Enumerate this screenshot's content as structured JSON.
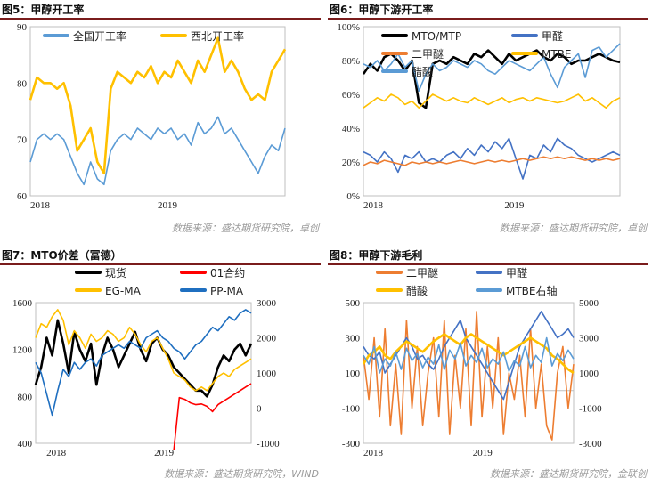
{
  "charts": [
    {
      "title": "图5：甲醇开工率",
      "source": "数据来源：盛达期货研究院，卓创",
      "chart_data": {
        "type": "line",
        "x_ticks": [
          "2018",
          "2019"
        ],
        "ylim": [
          60,
          90
        ],
        "y_ticks": [
          "60",
          "70",
          "80",
          "90"
        ],
        "legend": "top",
        "series": [
          {
            "name": "全国开工率",
            "color": "#5b9bd5",
            "values": [
              66,
              70,
              71,
              70,
              71,
              70,
              67,
              64,
              62,
              66,
              63,
              62,
              68,
              70,
              71,
              70,
              72,
              71,
              70,
              72,
              71,
              72,
              70,
              71,
              69,
              73,
              71,
              72,
              74,
              71,
              72,
              70,
              68,
              66,
              64,
              67,
              69,
              68,
              72
            ]
          },
          {
            "name": "西北开工率",
            "color": "#ffc000",
            "values": [
              77,
              81,
              80,
              80,
              79,
              80,
              76,
              68,
              70,
              72,
              66,
              64,
              79,
              82,
              81,
              80,
              82,
              81,
              83,
              80,
              82,
              81,
              84,
              82,
              80,
              84,
              82,
              85,
              88,
              82,
              84,
              82,
              79,
              77,
              78,
              77,
              82,
              84,
              86
            ]
          }
        ]
      }
    },
    {
      "title": "图6：甲醇下游开工率",
      "source": "数据来源：盛达期货研究院，卓创",
      "chart_data": {
        "type": "line",
        "x_ticks": [
          "2018",
          "2019"
        ],
        "ylim": [
          0,
          100
        ],
        "y_ticks": [
          "0%",
          "20%",
          "40%",
          "60%",
          "80%",
          "100%"
        ],
        "legend": "top",
        "series": [
          {
            "name": "MTO/MTP",
            "color": "#000000",
            "values": [
              72,
              78,
              74,
              82,
              84,
              80,
              74,
              80,
              55,
              52,
              78,
              80,
              78,
              82,
              80,
              78,
              84,
              82,
              86,
              82,
              78,
              84,
              80,
              82,
              84,
              86,
              82,
              80,
              84,
              82,
              78,
              80,
              80,
              82,
              84,
              82,
              80,
              79
            ]
          },
          {
            "name": "甲醛",
            "color": "#4472c4",
            "values": [
              26,
              24,
              20,
              26,
              22,
              14,
              24,
              22,
              26,
              20,
              22,
              20,
              24,
              26,
              22,
              28,
              24,
              30,
              26,
              32,
              28,
              34,
              22,
              10,
              24,
              22,
              30,
              26,
              34,
              30,
              28,
              24,
              22,
              20,
              22,
              24,
              26,
              24
            ]
          },
          {
            "name": "二甲醚",
            "color": "#ed7d31",
            "values": [
              18,
              20,
              19,
              21,
              20,
              19,
              18,
              20,
              19,
              20,
              19,
              20,
              19,
              20,
              21,
              20,
              19,
              20,
              21,
              20,
              21,
              20,
              21,
              22,
              21,
              22,
              23,
              22,
              23,
              22,
              23,
              22,
              21,
              22,
              21,
              22,
              21,
              22
            ]
          },
          {
            "name": "MTBE",
            "color": "#ffc000",
            "values": [
              52,
              55,
              58,
              56,
              60,
              58,
              54,
              56,
              52,
              56,
              60,
              58,
              56,
              58,
              56,
              55,
              58,
              56,
              54,
              56,
              58,
              55,
              57,
              58,
              56,
              58,
              57,
              56,
              55,
              56,
              58,
              60,
              56,
              58,
              55,
              52,
              56,
              58
            ]
          },
          {
            "name": "醋酸",
            "color": "#5b9bd5",
            "values": [
              78,
              76,
              80,
              74,
              78,
              84,
              76,
              80,
              62,
              72,
              78,
              74,
              76,
              80,
              78,
              76,
              80,
              78,
              74,
              72,
              76,
              80,
              78,
              76,
              74,
              78,
              82,
              72,
              64,
              76,
              80,
              84,
              70,
              86,
              88,
              82,
              86,
              90
            ]
          }
        ]
      }
    },
    {
      "title": "图7：MTO价差（冨德）",
      "source": "数据来源：盛达期货研究院，WIND",
      "chart_data": {
        "type": "line",
        "x_ticks": [
          "2018",
          "2019"
        ],
        "ylim": [
          400,
          1600
        ],
        "y_ticks": [
          "400",
          "800",
          "1200",
          "1600"
        ],
        "y2lim": [
          -1000,
          3000
        ],
        "y2_ticks": [
          "-1000",
          "0",
          "1000",
          "2000",
          "3000"
        ],
        "legend": "top",
        "series": [
          {
            "name": "现货",
            "color": "#000000",
            "axis": "left",
            "values": [
              900,
              1050,
              1300,
              1150,
              1450,
              1250,
              1000,
              1350,
              1200,
              1100,
              1250,
              900,
              1150,
              1300,
              1200,
              1050,
              1150,
              1250,
              1350,
              1200,
              1100,
              1250,
              1300,
              1200,
              1150,
              1050,
              1000,
              950,
              900,
              850,
              850,
              800,
              900,
              1050,
              1150,
              1100,
              1200,
              1250,
              1150,
              1250
            ]
          },
          {
            "name": "01合约",
            "color": "#ff0000",
            "axis": "right",
            "values": [
              null,
              null,
              null,
              null,
              null,
              null,
              null,
              null,
              null,
              null,
              null,
              null,
              null,
              null,
              null,
              null,
              null,
              null,
              null,
              null,
              null,
              null,
              null,
              null,
              null,
              -1200,
              300,
              250,
              150,
              100,
              120,
              50,
              -100,
              100,
              200,
              300,
              400,
              500,
              600,
              700
            ]
          },
          {
            "name": "EG-MA",
            "color": "#ffc000",
            "axis": "right",
            "values": [
              2000,
              2400,
              2300,
              2600,
              2800,
              2500,
              1800,
              2200,
              2000,
              1700,
              2100,
              1900,
              2000,
              2200,
              2100,
              1900,
              2000,
              2300,
              2100,
              1800,
              1600,
              1900,
              2000,
              1700,
              1400,
              1000,
              900,
              800,
              600,
              500,
              600,
              500,
              700,
              900,
              1000,
              900,
              1100,
              1200,
              1300,
              1400
            ]
          },
          {
            "name": "PP-MA",
            "color": "#1f6fc0",
            "axis": "right",
            "values": [
              1300,
              1000,
              400,
              -200,
              500,
              1100,
              900,
              1300,
              1100,
              1300,
              1400,
              1200,
              1500,
              1600,
              1700,
              1800,
              1700,
              1900,
              1800,
              1700,
              2000,
              2100,
              2200,
              2000,
              1900,
              1700,
              1600,
              1400,
              1600,
              1800,
              1900,
              2100,
              2300,
              2200,
              2400,
              2600,
              2500,
              2700,
              2800,
              2700
            ]
          }
        ]
      }
    },
    {
      "title": "图8：甲醇下游毛利",
      "source": "数据来源：盛达期货研究院，金联创",
      "chart_data": {
        "type": "line",
        "x_ticks": [
          "2018",
          "2019"
        ],
        "ylim": [
          -300,
          500
        ],
        "y_ticks": [
          "-300",
          "-100",
          "100",
          "300",
          "500"
        ],
        "y2lim": [
          -3000,
          5000
        ],
        "y2_ticks": [
          "-3000",
          "-1000",
          "1000",
          "3000",
          "5000"
        ],
        "legend": "top",
        "series": [
          {
            "name": "二甲醚",
            "color": "#ed7d31",
            "axis": "left",
            "values": [
              200,
              -50,
              300,
              -150,
              350,
              -200,
              150,
              -250,
              400,
              -100,
              250,
              -200,
              100,
              300,
              -150,
              400,
              -250,
              200,
              -100,
              350,
              -200,
              450,
              -150,
              250,
              -100,
              300,
              -250,
              100,
              -50,
              200,
              -150,
              350,
              -100,
              150,
              -200,
              -280,
              100,
              250,
              -100,
              150
            ]
          },
          {
            "name": "甲醛",
            "color": "#4472c4",
            "axis": "left",
            "values": [
              250,
              200,
              180,
              220,
              100,
              150,
              200,
              250,
              300,
              250,
              180,
              200,
              150,
              120,
              180,
              250,
              300,
              350,
              400,
              300,
              250,
              200,
              150,
              100,
              50,
              0,
              -50,
              50,
              150,
              250,
              300,
              350,
              400,
              450,
              400,
              350,
              300,
              320,
              350,
              300
            ]
          },
          {
            "name": "醋酸",
            "color": "#ffc000",
            "axis": "left",
            "values": [
              150,
              200,
              220,
              250,
              200,
              180,
              220,
              250,
              280,
              260,
              240,
              220,
              250,
              280,
              300,
              320,
              300,
              280,
              260,
              300,
              320,
              300,
              280,
              260,
              240,
              220,
              200,
              220,
              240,
              260,
              280,
              300,
              280,
              260,
              240,
              200,
              180,
              150,
              120,
              100
            ]
          },
          {
            "name": "MTBE右轴",
            "color": "#5b9bd5",
            "axis": "right",
            "values": [
              2000,
              1500,
              2500,
              1000,
              1800,
              1400,
              2200,
              1200,
              2400,
              1700,
              2100,
              1300,
              1900,
              1500,
              2600,
              1200,
              2300,
              1800,
              2700,
              1400,
              2000,
              1600,
              2400,
              1300,
              1800,
              1500,
              2200,
              1100,
              1700,
              1400,
              2500,
              1300,
              2000,
              1600,
              3000,
              1400,
              2100,
              1700,
              2300,
              1800
            ]
          }
        ]
      }
    }
  ]
}
